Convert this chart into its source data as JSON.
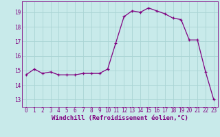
{
  "x": [
    0,
    1,
    2,
    3,
    4,
    5,
    6,
    7,
    8,
    9,
    10,
    11,
    12,
    13,
    14,
    15,
    16,
    17,
    18,
    19,
    20,
    21,
    22,
    23
  ],
  "y": [
    14.7,
    15.1,
    14.8,
    14.9,
    14.7,
    14.7,
    14.7,
    14.8,
    14.8,
    14.8,
    15.1,
    16.9,
    18.7,
    19.1,
    19.0,
    19.3,
    19.1,
    18.9,
    18.6,
    18.5,
    17.1,
    17.1,
    14.9,
    13.0
  ],
  "line_color": "#800080",
  "marker": "+",
  "bg_color": "#c8eaea",
  "grid_color": "#aad4d4",
  "xlabel": "Windchill (Refroidissement éolien,°C)",
  "xlim": [
    -0.5,
    23.5
  ],
  "ylim": [
    12.5,
    19.75
  ],
  "yticks": [
    13,
    14,
    15,
    16,
    17,
    18,
    19
  ],
  "xticks": [
    0,
    1,
    2,
    3,
    4,
    5,
    6,
    7,
    8,
    9,
    10,
    11,
    12,
    13,
    14,
    15,
    16,
    17,
    18,
    19,
    20,
    21,
    22,
    23
  ],
  "tick_label_color": "#800080",
  "tick_label_fontsize": 5.5,
  "xlabel_fontsize": 6.5,
  "spine_color": "#800080",
  "marker_size": 3,
  "linewidth": 0.9
}
